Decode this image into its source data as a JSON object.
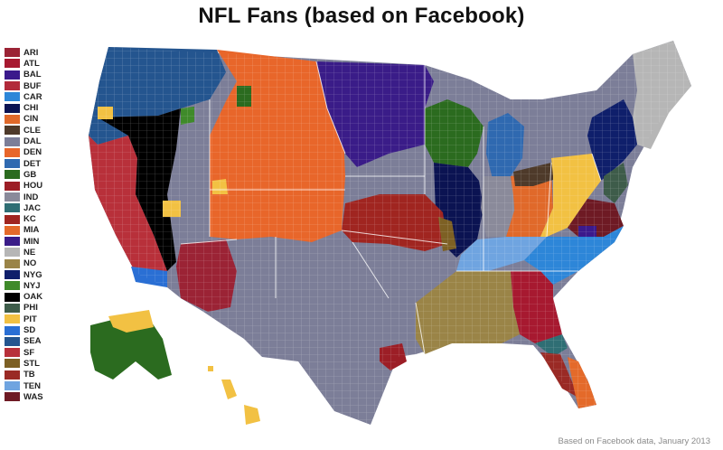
{
  "title": "NFL Fans (based on Facebook)",
  "source_note": "Based on Facebook data, January 2013",
  "legend": [
    {
      "label": "ARI",
      "color": "#9b2335"
    },
    {
      "label": "ATL",
      "color": "#a71930"
    },
    {
      "label": "BAL",
      "color": "#3b1a8c"
    },
    {
      "label": "BUF",
      "color": "#b22a3a"
    },
    {
      "label": "CAR",
      "color": "#2d86d8"
    },
    {
      "label": "CHI",
      "color": "#0b1352"
    },
    {
      "label": "CIN",
      "color": "#e0692a"
    },
    {
      "label": "CLE",
      "color": "#4e3a2a"
    },
    {
      "label": "DAL",
      "color": "#7c7e98"
    },
    {
      "label": "DEN",
      "color": "#e8662a"
    },
    {
      "label": "DET",
      "color": "#2f69b0"
    },
    {
      "label": "GB",
      "color": "#2b6b1f"
    },
    {
      "label": "HOU",
      "color": "#9c1e26"
    },
    {
      "label": "IND",
      "color": "#8a8a9a"
    },
    {
      "label": "JAC",
      "color": "#2f6e74"
    },
    {
      "label": "KC",
      "color": "#a02520"
    },
    {
      "label": "MIA",
      "color": "#e46a2a"
    },
    {
      "label": "MIN",
      "color": "#3a1c88"
    },
    {
      "label": "NE",
      "color": "#b6b6b6"
    },
    {
      "label": "NO",
      "color": "#9a8447"
    },
    {
      "label": "NYG",
      "color": "#0f1f6b"
    },
    {
      "label": "NYJ",
      "color": "#3f8a2a"
    },
    {
      "label": "OAK",
      "color": "#000000"
    },
    {
      "label": "PHI",
      "color": "#3e5c4a"
    },
    {
      "label": "PIT",
      "color": "#f2c143"
    },
    {
      "label": "SD",
      "color": "#2a6fd4"
    },
    {
      "label": "SEA",
      "color": "#24558f"
    },
    {
      "label": "SF",
      "color": "#b8303a"
    },
    {
      "label": "STL",
      "color": "#7d6024"
    },
    {
      "label": "TB",
      "color": "#9a2a25"
    },
    {
      "label": "TEN",
      "color": "#6fa4e0"
    },
    {
      "label": "WAS",
      "color": "#6e1a24"
    }
  ],
  "map_regions": [
    {
      "team": "SEA",
      "region": "Pacific Northwest"
    },
    {
      "team": "DEN",
      "region": "Mountain West"
    },
    {
      "team": "MIN",
      "region": "Upper Midwest"
    },
    {
      "team": "GB",
      "region": "Wisconsin"
    },
    {
      "team": "DET",
      "region": "Michigan"
    },
    {
      "team": "CHI",
      "region": "Illinois"
    },
    {
      "team": "NE",
      "region": "New England"
    },
    {
      "team": "NYG",
      "region": "New York"
    },
    {
      "team": "PIT",
      "region": "Pennsylvania"
    },
    {
      "team": "SF",
      "region": "Northern California"
    },
    {
      "team": "OAK",
      "region": "Nevada"
    },
    {
      "team": "ARI",
      "region": "Arizona"
    },
    {
      "team": "DAL",
      "region": "Texas"
    },
    {
      "team": "KC",
      "region": "Kansas City"
    },
    {
      "team": "TEN",
      "region": "Tennessee"
    },
    {
      "team": "NO",
      "region": "Louisiana"
    },
    {
      "team": "ATL",
      "region": "Georgia"
    },
    {
      "team": "CAR",
      "region": "Carolinas"
    },
    {
      "team": "WAS",
      "region": "Virginia"
    },
    {
      "team": "TB",
      "region": "Florida"
    },
    {
      "team": "MIA",
      "region": "South Florida"
    },
    {
      "team": "SD",
      "region": "San Diego"
    }
  ]
}
